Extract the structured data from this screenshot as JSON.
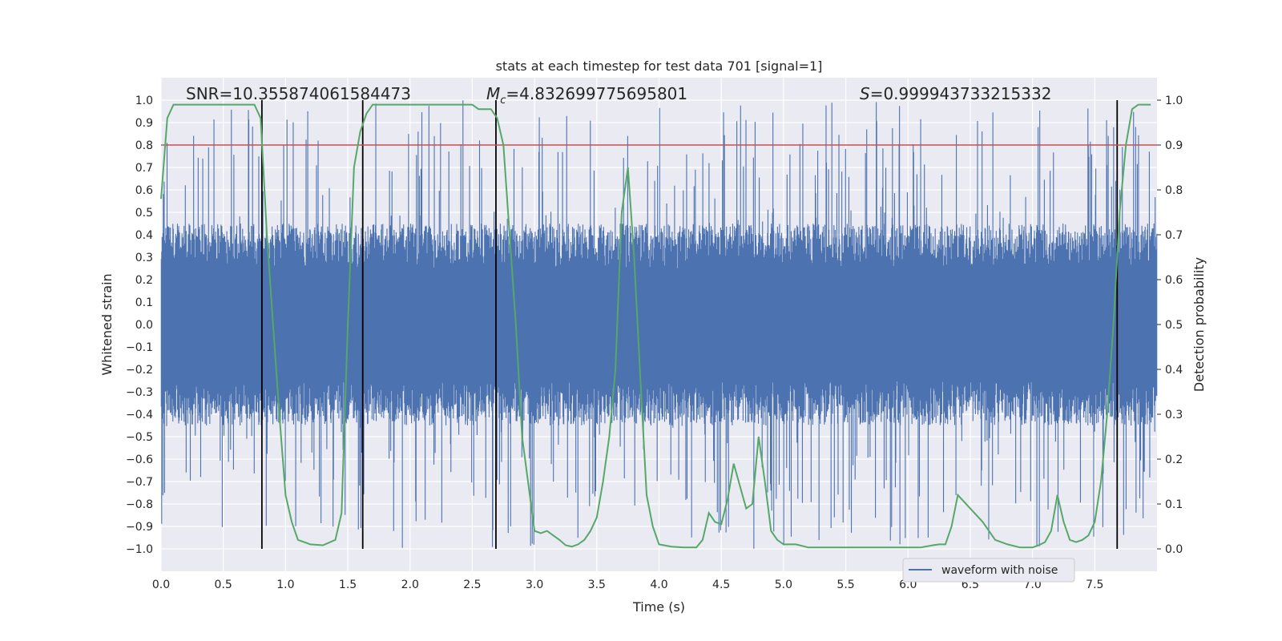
{
  "chart_data": {
    "type": "line",
    "title": "stats at each timestep for test data 701 [signal=1]",
    "xlabel": "Time (s)",
    "ylabel_left": "Whitened strain",
    "ylabel_right": "Detection probability",
    "xlim": [
      0.0,
      8.0
    ],
    "ylim_left": [
      -1.1,
      1.1
    ],
    "ylim_right": [
      -0.05,
      1.05
    ],
    "x_ticks": [
      "0.0",
      "0.5",
      "1.0",
      "1.5",
      "2.0",
      "2.5",
      "3.0",
      "3.5",
      "4.0",
      "4.5",
      "5.0",
      "5.5",
      "6.0",
      "6.5",
      "7.0",
      "7.5"
    ],
    "y_left_ticks": [
      "1.0",
      "0.9",
      "0.8",
      "0.7",
      "0.6",
      "0.5",
      "0.4",
      "0.3",
      "0.2",
      "0.1",
      "0.0",
      "−0.1",
      "−0.2",
      "−0.3",
      "−0.4",
      "−0.5",
      "−0.6",
      "−0.7",
      "−0.8",
      "−0.9",
      "−1.0"
    ],
    "y_right_ticks": [
      "1.0",
      "0.9",
      "0.8",
      "0.7",
      "0.6",
      "0.5",
      "0.4",
      "0.3",
      "0.2",
      "0.1",
      "0.0"
    ],
    "grid": true,
    "annotations": {
      "snr": "SNR=10.355874061584473",
      "mc_symbol": "M",
      "mc_sub": "c",
      "mc_value": "=4.832699775695801",
      "s_symbol": "S",
      "s_value": "=0.999943733215332"
    },
    "threshold_right": 0.9,
    "vertical_lines_x": [
      0.81,
      1.62,
      2.69,
      7.68
    ],
    "legend": {
      "label": "waveform with noise",
      "placement": "lower-right"
    },
    "series": [
      {
        "name": "waveform with noise",
        "axis": "left",
        "color": "#4c72b0",
        "style": "noise",
        "envelope_typical": 0.45,
        "envelope_max": 1.0
      },
      {
        "axis": "right",
        "color": "#55a868",
        "x": [
          0.0,
          0.05,
          0.1,
          0.15,
          0.2,
          0.3,
          0.4,
          0.5,
          0.6,
          0.7,
          0.75,
          0.8,
          0.85,
          0.9,
          0.95,
          1.0,
          1.05,
          1.1,
          1.2,
          1.3,
          1.4,
          1.45,
          1.5,
          1.55,
          1.6,
          1.65,
          1.7,
          1.75,
          1.8,
          1.9,
          2.0,
          2.2,
          2.4,
          2.5,
          2.55,
          2.6,
          2.65,
          2.7,
          2.75,
          2.8,
          2.85,
          2.9,
          3.0,
          3.05,
          3.1,
          3.2,
          3.25,
          3.3,
          3.35,
          3.4,
          3.45,
          3.5,
          3.55,
          3.6,
          3.65,
          3.7,
          3.75,
          3.8,
          3.85,
          3.9,
          3.95,
          4.0,
          4.1,
          4.2,
          4.3,
          4.35,
          4.4,
          4.45,
          4.5,
          4.55,
          4.6,
          4.65,
          4.7,
          4.75,
          4.8,
          4.85,
          4.9,
          4.95,
          5.0,
          5.1,
          5.2,
          5.3,
          5.5,
          5.7,
          5.9,
          6.0,
          6.1,
          6.2,
          6.25,
          6.3,
          6.35,
          6.4,
          6.5,
          6.6,
          6.7,
          6.8,
          6.9,
          7.0,
          7.05,
          7.1,
          7.15,
          7.2,
          7.25,
          7.3,
          7.35,
          7.4,
          7.45,
          7.5,
          7.55,
          7.6,
          7.65,
          7.7,
          7.75,
          7.8,
          7.85,
          7.9,
          7.95
        ],
        "y": [
          0.78,
          0.96,
          0.99,
          0.99,
          0.99,
          0.99,
          0.99,
          0.99,
          0.99,
          0.99,
          0.99,
          0.96,
          0.7,
          0.5,
          0.3,
          0.12,
          0.06,
          0.02,
          0.01,
          0.008,
          0.02,
          0.08,
          0.5,
          0.85,
          0.93,
          0.97,
          0.99,
          0.99,
          0.99,
          0.99,
          0.99,
          0.99,
          0.99,
          0.99,
          0.98,
          0.98,
          0.98,
          0.96,
          0.9,
          0.7,
          0.5,
          0.25,
          0.04,
          0.035,
          0.04,
          0.02,
          0.008,
          0.005,
          0.01,
          0.02,
          0.04,
          0.07,
          0.15,
          0.25,
          0.4,
          0.75,
          0.85,
          0.65,
          0.38,
          0.12,
          0.05,
          0.01,
          0.005,
          0.003,
          0.003,
          0.02,
          0.08,
          0.06,
          0.055,
          0.11,
          0.19,
          0.14,
          0.09,
          0.1,
          0.25,
          0.15,
          0.04,
          0.02,
          0.01,
          0.01,
          0.003,
          0.003,
          0.003,
          0.003,
          0.003,
          0.003,
          0.003,
          0.008,
          0.01,
          0.01,
          0.05,
          0.12,
          0.09,
          0.06,
          0.02,
          0.01,
          0.003,
          0.003,
          0.008,
          0.015,
          0.04,
          0.12,
          0.06,
          0.02,
          0.015,
          0.02,
          0.03,
          0.06,
          0.15,
          0.3,
          0.5,
          0.75,
          0.9,
          0.98,
          0.99,
          0.99,
          0.99
        ]
      }
    ]
  }
}
